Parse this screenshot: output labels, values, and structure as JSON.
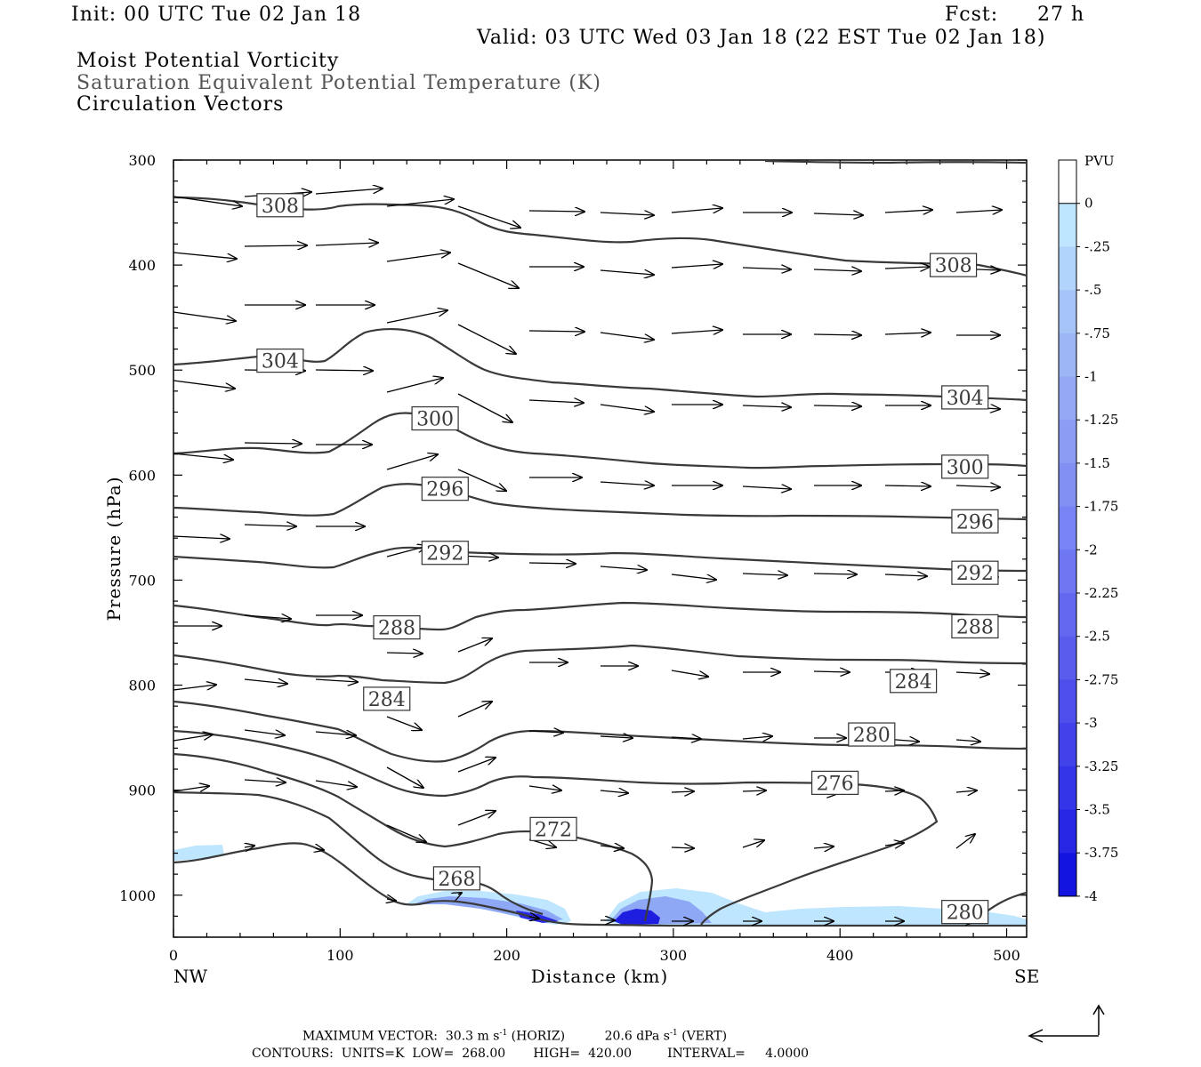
{
  "header": {
    "init": "Init: 00 UTC Tue 02 Jan 18",
    "fcst_label": "Fcst:",
    "fcst_value": "27 h",
    "valid": "Valid: 03 UTC Wed 03 Jan 18 (22 EST Tue 02 Jan 18)",
    "field1": "Moist Potential Vorticity",
    "field2": "Saturation Equivalent Potential Temperature (K)",
    "field3": "Circulation Vectors"
  },
  "footer": {
    "max_vector": "MAXIMUM VECTOR:  30.3 m s",
    "max_horiz_unit": "(HORIZ)",
    "max_vert": "20.6 dPa s",
    "max_vert_unit": "(VERT)",
    "exp": "-1",
    "contours": "CONTOURS:  UNITS=K  LOW=  268.00       HIGH=  420.00         INTERVAL=     4.0000"
  },
  "colors": {
    "contour": "#3a3a3a",
    "pv_light": "#bfe6ff",
    "pv_mid": "#8ea8f5",
    "pv_dark": "#1e1ee0"
  },
  "chart_data": {
    "type": "contour-cross-section",
    "xlabel": "Distance (km)",
    "ylabel": "Pressure (hPa)",
    "xlim": [
      0,
      512
    ],
    "ylim": [
      1040,
      300
    ],
    "x_ticks": [
      "0",
      "100",
      "200",
      "300",
      "400",
      "500"
    ],
    "x_tick_values": [
      0,
      100,
      200,
      300,
      400,
      500
    ],
    "y_ticks": [
      "300",
      "400",
      "500",
      "600",
      "700",
      "800",
      "900",
      "1000"
    ],
    "y_tick_values": [
      300,
      400,
      500,
      600,
      700,
      800,
      900,
      1000
    ],
    "left_end": "NW",
    "right_end": "SE",
    "colorbar": {
      "title": "PVU",
      "labels": [
        "0",
        "-.25",
        "-.5",
        "-.75",
        "-1",
        "-1.25",
        "-1.5",
        "-1.75",
        "-2",
        "-2.25",
        "-2.5",
        "-2.75",
        "-3",
        "-3.25",
        "-3.5",
        "-3.75",
        "-4"
      ],
      "colors": [
        "#ffffff",
        "#bfe6ff",
        "#b0d4fb",
        "#a6c4f8",
        "#9cb6f6",
        "#94a8f5",
        "#8c9cf4",
        "#8290f4",
        "#7884f4",
        "#6e76f2",
        "#6468f0",
        "#5a5cee",
        "#4e4eec",
        "#4242ea",
        "#3434e8",
        "#2626e4",
        "#1414e0"
      ]
    },
    "contour_labels": [
      {
        "text": "308",
        "x": 64,
        "p": 343
      },
      {
        "text": "308",
        "x": 468,
        "p": 400
      },
      {
        "text": "304",
        "x": 64,
        "p": 491
      },
      {
        "text": "304",
        "x": 475,
        "p": 526
      },
      {
        "text": "300",
        "x": 157,
        "p": 546
      },
      {
        "text": "300",
        "x": 475,
        "p": 592
      },
      {
        "text": "296",
        "x": 163,
        "p": 613
      },
      {
        "text": "296",
        "x": 481,
        "p": 644
      },
      {
        "text": "292",
        "x": 163,
        "p": 674
      },
      {
        "text": "292",
        "x": 481,
        "p": 693
      },
      {
        "text": "288",
        "x": 134,
        "p": 745
      },
      {
        "text": "288",
        "x": 481,
        "p": 744
      },
      {
        "text": "284",
        "x": 128,
        "p": 813
      },
      {
        "text": "284",
        "x": 444,
        "p": 796
      },
      {
        "text": "280",
        "x": 419,
        "p": 847
      },
      {
        "text": "280",
        "x": 475,
        "p": 1016
      },
      {
        "text": "276",
        "x": 397,
        "p": 893
      },
      {
        "text": "272",
        "x": 228,
        "p": 937
      },
      {
        "text": "268",
        "x": 170,
        "p": 984
      }
    ]
  }
}
